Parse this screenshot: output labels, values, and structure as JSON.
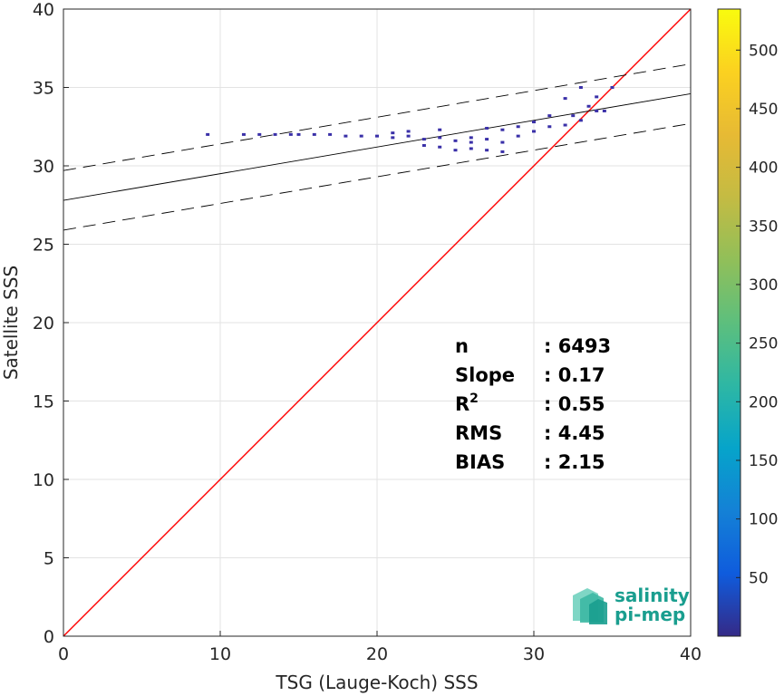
{
  "chart_data": {
    "type": "heatmap",
    "xlabel": "TSG (Lauge-Koch) SSS",
    "ylabel": "Satellite SSS",
    "xlim": [
      0,
      40
    ],
    "ylim": [
      0,
      40
    ],
    "xticks": [
      0,
      10,
      20,
      30,
      40
    ],
    "yticks": [
      0,
      5,
      10,
      15,
      20,
      25,
      30,
      35,
      40
    ],
    "grid": true,
    "colorbar": {
      "min": 0,
      "max": 535,
      "ticks": [
        50,
        100,
        150,
        200,
        250,
        300,
        350,
        400,
        450,
        500
      ],
      "colormap": "parula"
    },
    "reference_line": {
      "slope": 1,
      "intercept": 0,
      "color": "#ff0000"
    },
    "fit_line": {
      "slope": 0.17,
      "intercept": 27.8,
      "color": "#000000"
    },
    "confidence_lines": {
      "offset": 1.9,
      "style": "dashed",
      "color": "#000000"
    },
    "density_points": [
      [
        9.2,
        32.0
      ],
      [
        11.5,
        32.0
      ],
      [
        12.5,
        32.0
      ],
      [
        13.5,
        32.0
      ],
      [
        14.5,
        32.0
      ],
      [
        15,
        32.0
      ],
      [
        16,
        32.0
      ],
      [
        17,
        32.0
      ],
      [
        18,
        31.9
      ],
      [
        19,
        31.9
      ],
      [
        20,
        31.9
      ],
      [
        21,
        31.8
      ],
      [
        22,
        31.9
      ],
      [
        23,
        31.7
      ],
      [
        24,
        31.8
      ],
      [
        25,
        31.6
      ],
      [
        26,
        31.8
      ],
      [
        27,
        31.7
      ],
      [
        28,
        31.5
      ],
      [
        29,
        31.9
      ],
      [
        30,
        32.2
      ],
      [
        31,
        32.5
      ],
      [
        32,
        32.6
      ],
      [
        33,
        32.9
      ],
      [
        34,
        33.5
      ],
      [
        35,
        35.0
      ],
      [
        23,
        31.3
      ],
      [
        24,
        31.2
      ],
      [
        25,
        31.0
      ],
      [
        26,
        31.1
      ],
      [
        27,
        31.0
      ],
      [
        28,
        30.9
      ],
      [
        26,
        31.5
      ],
      [
        28,
        32.3
      ],
      [
        29,
        32.5
      ],
      [
        30,
        32.8
      ],
      [
        31,
        33.2
      ],
      [
        32,
        34.3
      ],
      [
        33,
        35.0
      ],
      [
        34,
        34.4
      ],
      [
        33.5,
        33.8
      ],
      [
        32.5,
        33.2
      ],
      [
        34.5,
        33.5
      ],
      [
        22,
        32.2
      ],
      [
        21,
        32.1
      ],
      [
        24,
        32.3
      ],
      [
        27,
        32.4
      ]
    ],
    "stats": [
      {
        "label": "n",
        "value": ": 6493"
      },
      {
        "label": "Slope",
        "value": ": 0.17"
      },
      {
        "label": "R",
        "sup": "2",
        "value": ": 0.55"
      },
      {
        "label": "RMS",
        "value": ": 4.45"
      },
      {
        "label": "BIAS",
        "value": ": 2.15"
      }
    ]
  },
  "logo": {
    "line1": "salinity",
    "line2": "pi-mep"
  }
}
